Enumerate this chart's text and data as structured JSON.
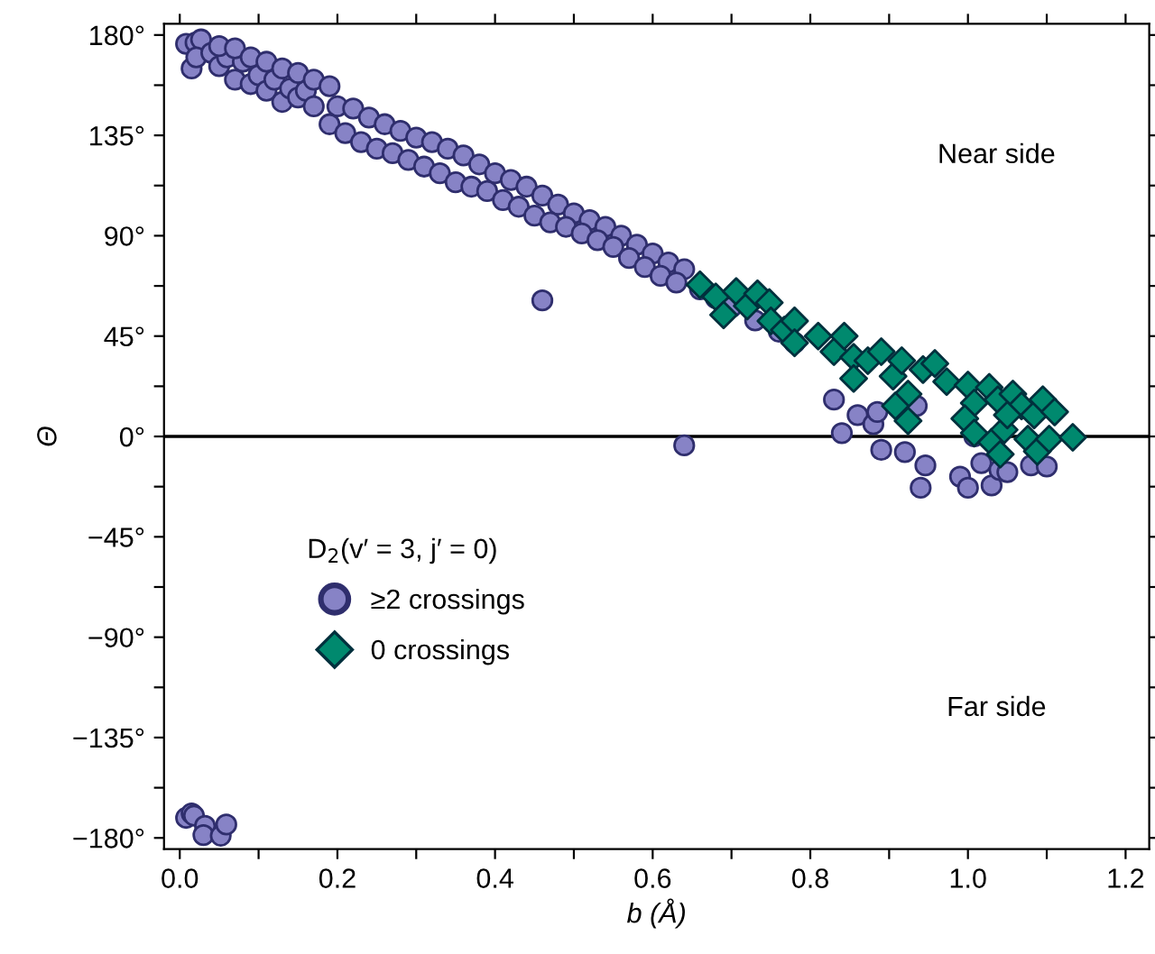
{
  "chart_data": {
    "type": "scatter",
    "xlabel": "b (Å)",
    "ylabel": "Θ",
    "legend_title": "D$_{2}$(v′ = 3, j′ = 0)",
    "legend": "left",
    "grid": false,
    "xlim": [
      -0.02,
      1.23
    ],
    "ylim": [
      -185,
      185
    ],
    "xticks": [
      {
        "value": 0,
        "label": "0.0"
      },
      {
        "value": 0.1,
        "label": null
      },
      {
        "value": 0.2,
        "label": "0.2"
      },
      {
        "value": 0.3,
        "label": null
      },
      {
        "value": 0.4,
        "label": "0.4"
      },
      {
        "value": 0.5,
        "label": null
      },
      {
        "value": 0.6,
        "label": "0.6"
      },
      {
        "value": 0.7,
        "label": null
      },
      {
        "value": 0.8,
        "label": "0.8"
      },
      {
        "value": 0.9,
        "label": null
      },
      {
        "value": 1.0,
        "label": "1.0"
      },
      {
        "value": 1.1,
        "label": null
      },
      {
        "value": 1.2,
        "label": "1.2"
      }
    ],
    "yticks": [
      {
        "value": -180,
        "label": "−180°"
      },
      {
        "value": -157.5,
        "label": null
      },
      {
        "value": -135,
        "label": "−135°"
      },
      {
        "value": -112.5,
        "label": null
      },
      {
        "value": -90,
        "label": "−90°"
      },
      {
        "value": -67.5,
        "label": null
      },
      {
        "value": -45,
        "label": "−45°"
      },
      {
        "value": -22.5,
        "label": null
      },
      {
        "value": 0,
        "label": "0°"
      },
      {
        "value": 22.5,
        "label": null
      },
      {
        "value": 45,
        "label": "45°"
      },
      {
        "value": 67.5,
        "label": null
      },
      {
        "value": 90,
        "label": "90°"
      },
      {
        "value": 112.5,
        "label": null
      },
      {
        "value": 135,
        "label": "135°"
      },
      {
        "value": 157.5,
        "label": null
      },
      {
        "value": 180,
        "label": "180°"
      }
    ],
    "ref_lines": [
      {
        "axis": "y",
        "value": 0,
        "color": "#000000",
        "line_style": "solid"
      }
    ],
    "annotations": [
      "Near side",
      "Far side"
    ],
    "series": [
      {
        "name": "≥2 crossings",
        "color": "#8783c6",
        "marker": "circle",
        "x": [
          0.008,
          0.02,
          0.027,
          0.015,
          0.021,
          0.04,
          0.05,
          0.06,
          0.07,
          0.08,
          0.09,
          0.1,
          0.11,
          0.12,
          0.13,
          0.14,
          0.15,
          0.16,
          0.17,
          0.05,
          0.07,
          0.09,
          0.11,
          0.13,
          0.15,
          0.17,
          0.19,
          0.2,
          0.22,
          0.24,
          0.26,
          0.28,
          0.3,
          0.32,
          0.34,
          0.36,
          0.38,
          0.4,
          0.42,
          0.44,
          0.46,
          0.48,
          0.5,
          0.52,
          0.54,
          0.56,
          0.58,
          0.6,
          0.62,
          0.64,
          0.19,
          0.21,
          0.23,
          0.25,
          0.27,
          0.29,
          0.31,
          0.33,
          0.35,
          0.37,
          0.39,
          0.41,
          0.43,
          0.45,
          0.47,
          0.49,
          0.51,
          0.53,
          0.55,
          0.57,
          0.59,
          0.61,
          0.63,
          0.66,
          0.68,
          0.7,
          0.73,
          0.76,
          0.78,
          0.46,
          0.64,
          0.83,
          0.84,
          0.86,
          0.88,
          0.885,
          0.89,
          0.92,
          0.935,
          0.946,
          0.94,
          0.99,
          1.0,
          1.008,
          1.017,
          1.03,
          1.04,
          1.05,
          1.08,
          1.1,
          0.008,
          0.015,
          0.018,
          0.032,
          0.03,
          0.052,
          0.059
        ],
        "values": [
          176,
          176.6,
          178,
          165,
          170,
          172,
          166,
          170,
          160,
          168,
          158,
          162,
          155,
          160,
          150,
          156,
          152,
          155,
          148,
          175,
          174,
          170,
          168,
          165,
          163,
          160,
          157,
          148,
          147,
          143,
          140,
          137,
          134,
          132,
          129,
          126,
          122,
          118,
          115,
          112,
          108,
          104,
          100,
          97,
          94,
          90,
          86,
          82,
          78,
          75,
          140,
          136,
          132,
          129,
          127,
          124,
          121,
          118,
          114,
          112,
          110,
          106,
          103,
          99,
          96,
          94,
          91,
          88,
          85,
          80,
          76,
          72,
          69,
          66,
          62,
          58,
          52,
          47,
          42,
          61,
          -4,
          16.5,
          1.5,
          9.6,
          5.5,
          11,
          -6,
          -7,
          13.7,
          -13,
          -23,
          -18,
          -23,
          0,
          -12,
          -22,
          -15,
          -16,
          -13,
          -13.5,
          -171,
          -169,
          -170,
          -174.6,
          -178.7,
          -179,
          -174
        ]
      },
      {
        "name": "0 crossings",
        "color": "#00896e",
        "marker": "diamond",
        "x": [
          0.66,
          0.68,
          0.69,
          0.706,
          0.72,
          0.733,
          0.748,
          0.75,
          0.767,
          0.78,
          0.78,
          0.81,
          0.83,
          0.843,
          0.855,
          0.855,
          0.873,
          0.89,
          0.905,
          0.916,
          0.924,
          0.908,
          0.924,
          0.943,
          0.958,
          0.973,
          1.0,
          1.008,
          0.996,
          1.008,
          1.027,
          1.038,
          1.03,
          1.041,
          1.046,
          1.057,
          1.068,
          1.076,
          1.088,
          1.084,
          1.095,
          1.11,
          1.103,
          1.133,
          1.05
        ],
        "values": [
          68,
          62.6,
          54.5,
          65,
          58.5,
          64,
          60,
          51.8,
          47.7,
          51.8,
          42,
          45,
          38,
          45,
          35.5,
          26,
          34,
          38,
          27,
          34,
          19,
          13.7,
          7,
          30,
          32.7,
          24.6,
          23,
          15,
          8,
          1.5,
          22,
          16.5,
          -2.6,
          -8,
          3,
          19,
          13.7,
          -1.2,
          -6.7,
          9.6,
          16.5,
          11,
          -1.2,
          -0.4,
          9.6
        ]
      }
    ]
  }
}
